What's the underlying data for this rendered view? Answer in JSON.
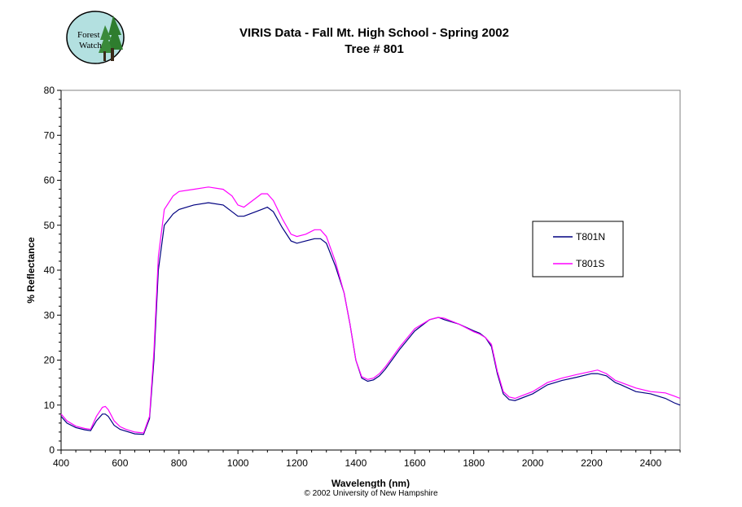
{
  "logo": {
    "line1": "Forest",
    "line2": "Watch"
  },
  "copyright": "© 2002 University of New Hampshire",
  "chart_data": {
    "type": "line",
    "title": "VIRIS Data - Fall Mt. High School - Spring 2002",
    "subtitle": "Tree # 801",
    "xlabel": "Wavelength (nm)",
    "ylabel": "% Reflectance",
    "xlim": [
      400,
      2500
    ],
    "ylim": [
      0,
      80
    ],
    "xticks": [
      400,
      600,
      800,
      1000,
      1200,
      1400,
      1600,
      1800,
      2000,
      2200,
      2400
    ],
    "yticks": [
      0,
      10,
      20,
      30,
      40,
      50,
      60,
      70,
      80
    ],
    "grid": false,
    "legend_position": "right",
    "series": [
      {
        "name": "T801N",
        "color": "#000080",
        "x": [
          400,
          420,
          450,
          480,
          500,
          520,
          540,
          550,
          560,
          580,
          600,
          620,
          650,
          680,
          700,
          715,
          730,
          750,
          780,
          800,
          850,
          900,
          950,
          980,
          1000,
          1020,
          1040,
          1060,
          1080,
          1100,
          1120,
          1150,
          1180,
          1200,
          1230,
          1260,
          1280,
          1300,
          1330,
          1360,
          1380,
          1400,
          1420,
          1440,
          1460,
          1480,
          1500,
          1550,
          1600,
          1650,
          1680,
          1700,
          1750,
          1800,
          1820,
          1840,
          1860,
          1880,
          1900,
          1920,
          1940,
          1960,
          2000,
          2050,
          2100,
          2150,
          2200,
          2220,
          2250,
          2280,
          2300,
          2350,
          2400,
          2450,
          2480,
          2500
        ],
        "y": [
          7.5,
          6,
          5,
          4.5,
          4.3,
          6.5,
          8,
          8,
          7.5,
          5.5,
          4.6,
          4.2,
          3.6,
          3.5,
          7,
          20,
          40,
          50,
          52.5,
          53.5,
          54.5,
          55,
          54.5,
          53,
          52,
          52,
          52.5,
          53,
          53.5,
          54,
          53,
          49.5,
          46.5,
          46,
          46.5,
          47,
          47,
          46,
          41,
          35,
          28,
          20,
          16,
          15.3,
          15.6,
          16.5,
          18,
          22.5,
          26.5,
          29,
          29.5,
          29,
          28,
          26.5,
          26,
          25,
          23,
          17,
          12.5,
          11.2,
          11,
          11.5,
          12.5,
          14.5,
          15.5,
          16.2,
          17,
          17,
          16.5,
          15,
          14.5,
          13,
          12.5,
          11.5,
          10.5,
          10
        ]
      },
      {
        "name": "T801S",
        "color": "#ff00ff",
        "x": [
          400,
          420,
          450,
          480,
          500,
          520,
          540,
          550,
          560,
          580,
          600,
          620,
          650,
          680,
          700,
          715,
          730,
          750,
          780,
          800,
          850,
          900,
          950,
          980,
          1000,
          1020,
          1040,
          1060,
          1080,
          1100,
          1120,
          1150,
          1180,
          1200,
          1230,
          1260,
          1280,
          1300,
          1330,
          1360,
          1380,
          1400,
          1420,
          1440,
          1460,
          1480,
          1500,
          1550,
          1600,
          1650,
          1680,
          1700,
          1750,
          1800,
          1820,
          1840,
          1860,
          1880,
          1900,
          1920,
          1940,
          1960,
          2000,
          2050,
          2100,
          2150,
          2200,
          2220,
          2250,
          2280,
          2300,
          2350,
          2400,
          2450,
          2480,
          2500
        ],
        "y": [
          8,
          6.5,
          5.3,
          4.8,
          4.6,
          7.5,
          9.5,
          9.7,
          9,
          6.5,
          5.2,
          4.6,
          4,
          3.8,
          7.5,
          22,
          43,
          53.5,
          56.5,
          57.5,
          58,
          58.5,
          58,
          56.5,
          54.5,
          54,
          55,
          56,
          57,
          57,
          55.5,
          51.5,
          48,
          47.5,
          48,
          49,
          49,
          47.5,
          42,
          35,
          28,
          20,
          16.3,
          15.7,
          16,
          17,
          18.5,
          23,
          27,
          29,
          29.5,
          29.3,
          28,
          26.3,
          25.8,
          25,
          23.5,
          17.5,
          13,
          11.8,
          11.5,
          12,
          13,
          15,
          16,
          16.8,
          17.5,
          17.8,
          17,
          15.5,
          15,
          13.8,
          13,
          12.7,
          12,
          11.5
        ]
      }
    ]
  }
}
